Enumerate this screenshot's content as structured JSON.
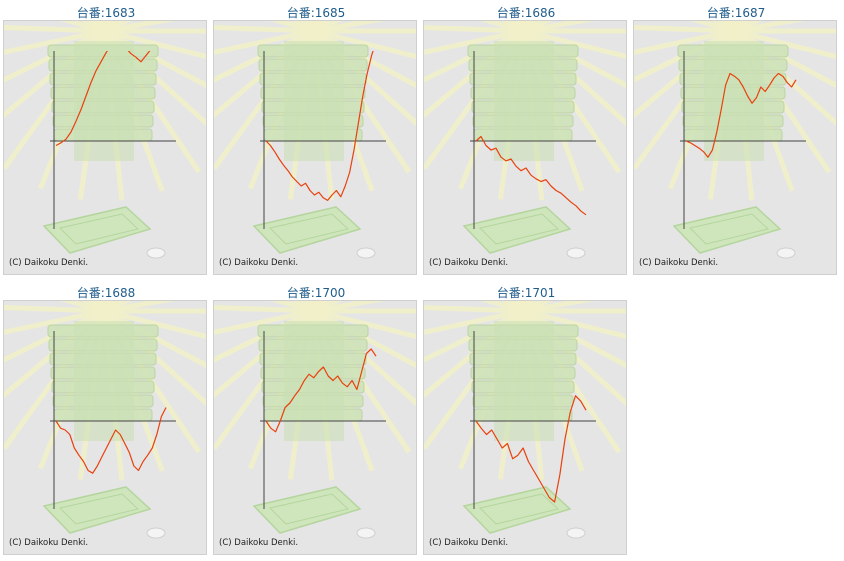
{
  "copyright": "(C) Daikoku Denki.",
  "colors": {
    "line": "#e8410d",
    "axis": "#444444",
    "title": "#1f5d8c",
    "background": "#e5e5e5"
  },
  "chart_data": [
    {
      "type": "line",
      "title": "台番:1683",
      "values": [
        -0.05,
        -0.02,
        0.02,
        0.1,
        0.22,
        0.35,
        0.5,
        0.65,
        0.78,
        0.88,
        0.98,
        1.06,
        1.12,
        1.08,
        1.03,
        0.97,
        0.93,
        0.88,
        0.95,
        1.02,
        1.1,
        1.18,
        1.25
      ]
    },
    {
      "type": "line",
      "title": "台番:1685",
      "values": [
        0.0,
        -0.05,
        -0.12,
        -0.2,
        -0.27,
        -0.33,
        -0.4,
        -0.45,
        -0.5,
        -0.47,
        -0.55,
        -0.6,
        -0.57,
        -0.63,
        -0.66,
        -0.6,
        -0.55,
        -0.62,
        -0.5,
        -0.35,
        -0.1,
        0.2,
        0.5,
        0.75,
        0.95,
        1.1
      ]
    },
    {
      "type": "line",
      "title": "台番:1686",
      "values": [
        0.0,
        0.05,
        -0.05,
        -0.1,
        -0.08,
        -0.18,
        -0.22,
        -0.2,
        -0.28,
        -0.33,
        -0.3,
        -0.38,
        -0.42,
        -0.45,
        -0.43,
        -0.5,
        -0.55,
        -0.58,
        -0.63,
        -0.68,
        -0.72,
        -0.78,
        -0.82
      ]
    },
    {
      "type": "line",
      "title": "台番:1687",
      "values": [
        0.0,
        -0.02,
        -0.05,
        -0.08,
        -0.12,
        -0.18,
        -0.1,
        0.1,
        0.35,
        0.62,
        0.75,
        0.72,
        0.68,
        0.6,
        0.5,
        0.42,
        0.48,
        0.6,
        0.55,
        0.62,
        0.7,
        0.75,
        0.72,
        0.65,
        0.6,
        0.68
      ]
    },
    {
      "type": "line",
      "title": "台番:1688",
      "values": [
        0.0,
        -0.08,
        -0.1,
        -0.15,
        -0.3,
        -0.38,
        -0.45,
        -0.55,
        -0.58,
        -0.5,
        -0.4,
        -0.3,
        -0.2,
        -0.1,
        -0.15,
        -0.25,
        -0.35,
        -0.5,
        -0.55,
        -0.45,
        -0.38,
        -0.3,
        -0.15,
        0.05,
        0.15
      ]
    },
    {
      "type": "line",
      "title": "台番:1700",
      "values": [
        0.0,
        -0.08,
        -0.12,
        0.0,
        0.15,
        0.2,
        0.28,
        0.35,
        0.45,
        0.52,
        0.48,
        0.55,
        0.6,
        0.5,
        0.45,
        0.5,
        0.42,
        0.38,
        0.45,
        0.35,
        0.55,
        0.75,
        0.8,
        0.72
      ]
    },
    {
      "type": "line",
      "title": "台番:1701",
      "values": [
        0.0,
        -0.08,
        -0.15,
        -0.1,
        -0.2,
        -0.3,
        -0.25,
        -0.42,
        -0.38,
        -0.3,
        -0.45,
        -0.55,
        -0.65,
        -0.75,
        -0.85,
        -0.9,
        -0.6,
        -0.2,
        0.1,
        0.28,
        0.22,
        0.12
      ]
    }
  ]
}
